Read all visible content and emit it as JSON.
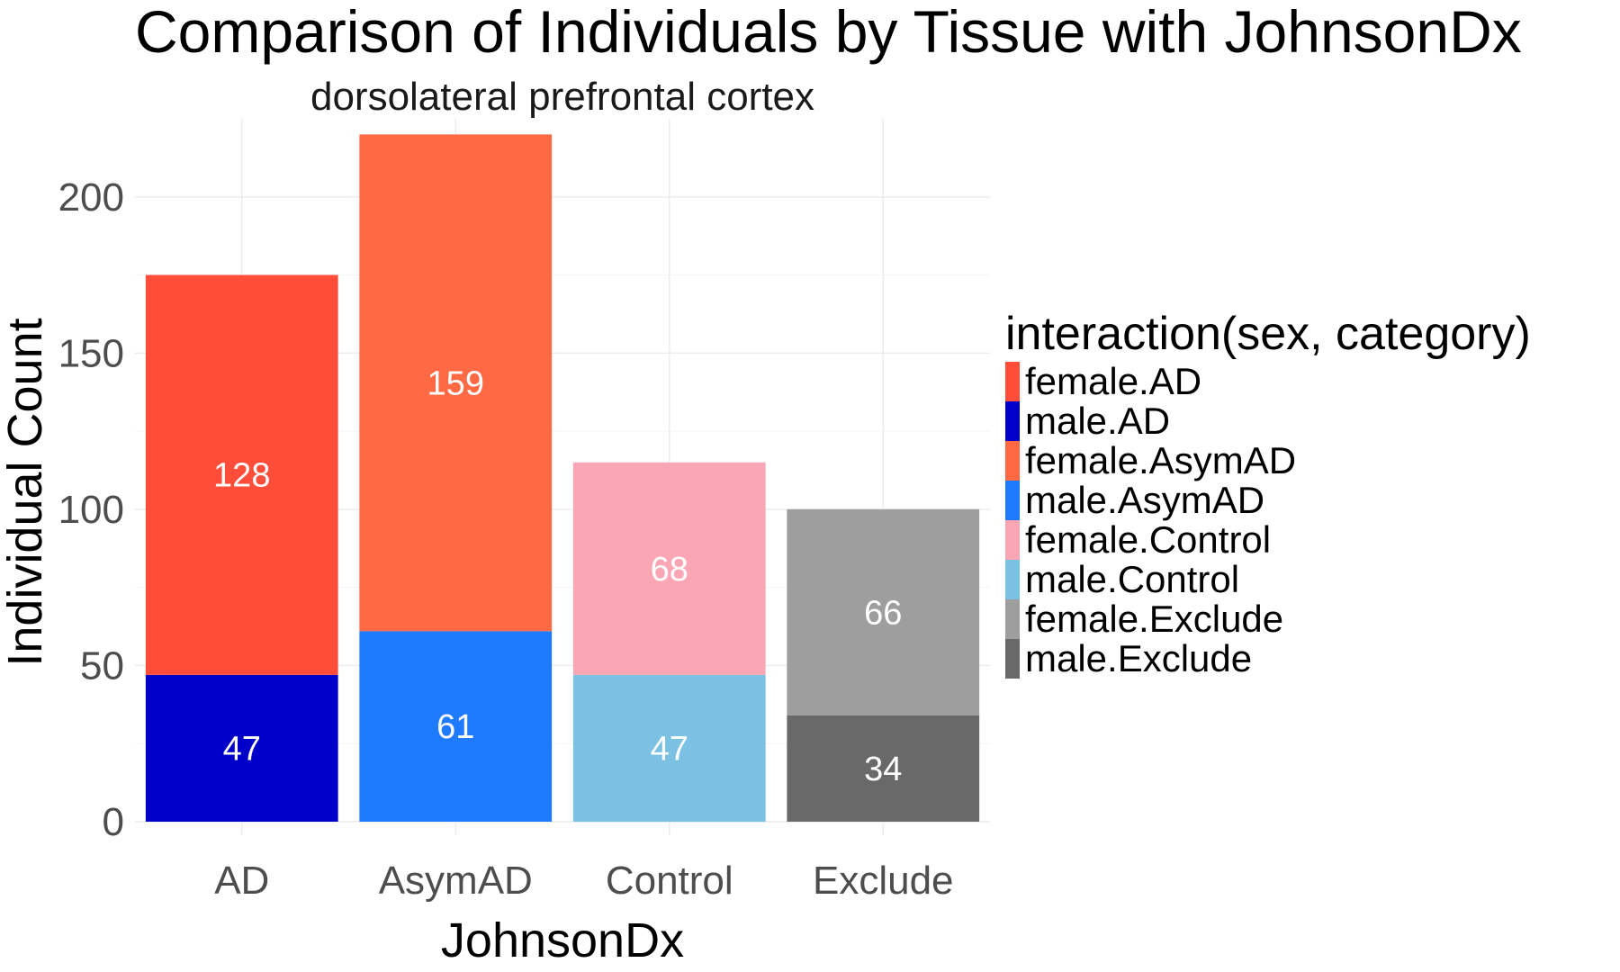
{
  "chart_data": {
    "type": "bar",
    "stacked": true,
    "title": "Comparison of Individuals by Tissue with JohnsonDx",
    "facet_label": "dorsolateral prefrontal cortex",
    "xlabel": "JohnsonDx",
    "ylabel": "Individual Count",
    "categories": [
      "AD",
      "AsymAD",
      "Control",
      "Exclude"
    ],
    "ylim": [
      0,
      225
    ],
    "y_ticks": [
      0,
      50,
      100,
      150,
      200
    ],
    "grid": true,
    "legend": {
      "title": "interaction(sex, category)",
      "position": "right",
      "entries": [
        {
          "label": "female.AD",
          "color": "#FF4D3A"
        },
        {
          "label": "male.AD",
          "color": "#0000C8"
        },
        {
          "label": "female.AsymAD",
          "color": "#FF6A45"
        },
        {
          "label": "male.AsymAD",
          "color": "#1E7BFF"
        },
        {
          "label": "female.Control",
          "color": "#FBA6B5"
        },
        {
          "label": "male.Control",
          "color": "#7AC1E3"
        },
        {
          "label": "female.Exclude",
          "color": "#9E9E9E"
        },
        {
          "label": "male.Exclude",
          "color": "#696969"
        }
      ]
    },
    "bars": [
      {
        "category": "AD",
        "segments": [
          {
            "series": "male.AD",
            "value": 47,
            "color": "#0000C8"
          },
          {
            "series": "female.AD",
            "value": 128,
            "color": "#FF4D3A"
          }
        ]
      },
      {
        "category": "AsymAD",
        "segments": [
          {
            "series": "male.AsymAD",
            "value": 61,
            "color": "#1E7BFF"
          },
          {
            "series": "female.AsymAD",
            "value": 159,
            "color": "#FF6A45"
          }
        ]
      },
      {
        "category": "Control",
        "segments": [
          {
            "series": "male.Control",
            "value": 47,
            "color": "#7AC1E3"
          },
          {
            "series": "female.Control",
            "value": 68,
            "color": "#FBA6B5"
          }
        ]
      },
      {
        "category": "Exclude",
        "segments": [
          {
            "series": "male.Exclude",
            "value": 34,
            "color": "#696969"
          },
          {
            "series": "female.Exclude",
            "value": 66,
            "color": "#9E9E9E"
          }
        ]
      }
    ]
  }
}
